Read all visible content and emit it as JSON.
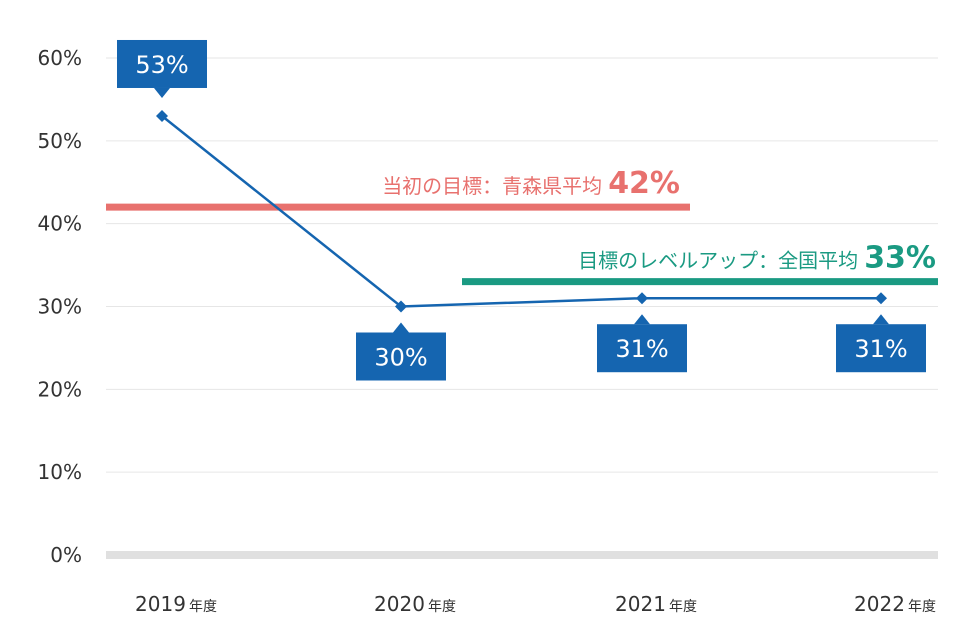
{
  "chart_data": {
    "type": "line",
    "categories": [
      "2019",
      "2020",
      "2021",
      "2022"
    ],
    "category_suffix": "年度",
    "series": [
      {
        "values": [
          53,
          30,
          31,
          31
        ]
      }
    ],
    "data_labels": [
      "53%",
      "30%",
      "31%",
      "31%"
    ],
    "y_ticks": [
      "0%",
      "10%",
      "20%",
      "30%",
      "40%",
      "50%",
      "60%"
    ],
    "ylim": [
      0,
      60
    ],
    "grid": true,
    "reference_lines": [
      {
        "value": 42,
        "label": "当初の目標：青森県平均",
        "value_label": "42%",
        "color": "#e8716e"
      },
      {
        "value": 33,
        "label": "目標のレベルアップ：全国平均",
        "value_label": "33%",
        "color": "#1a9a82"
      }
    ],
    "colors": {
      "series": "#1565b0",
      "label_box": "#1565b0",
      "grid": "#e6e6e6",
      "baseline": "#e0e0e0"
    }
  }
}
